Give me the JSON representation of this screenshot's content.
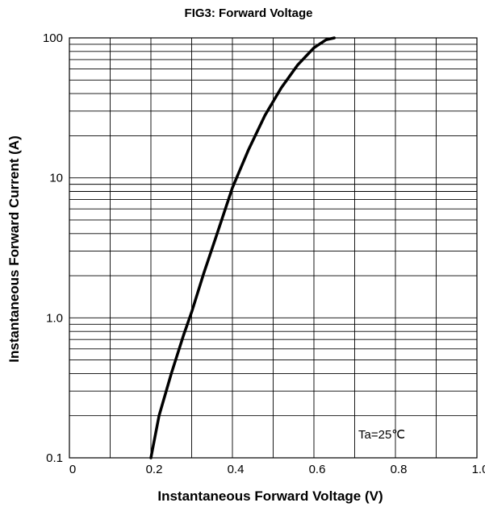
{
  "chart_data": {
    "type": "line",
    "title": "FIG3: Forward Voltage",
    "xlabel": "Instantaneous Forward Voltage (V)",
    "ylabel": "Instantaneous Forward Current (A)",
    "xlim": [
      0,
      1.0
    ],
    "ylim": [
      0.1,
      100
    ],
    "yscale": "log",
    "grid": true,
    "x_ticks": [
      {
        "value": 0,
        "label": "0"
      },
      {
        "value": 0.2,
        "label": "0.2"
      },
      {
        "value": 0.4,
        "label": "0.4"
      },
      {
        "value": 0.6,
        "label": "0.6"
      },
      {
        "value": 0.8,
        "label": "0.8"
      },
      {
        "value": 1.0,
        "label": "1.0"
      }
    ],
    "y_ticks": [
      {
        "value": 0.1,
        "label": "0.1"
      },
      {
        "value": 1.0,
        "label": "1.0"
      },
      {
        "value": 10,
        "label": "10"
      },
      {
        "value": 100,
        "label": "100"
      }
    ],
    "annotation": "Ta=25℃",
    "series": [
      {
        "x": [
          0.2,
          0.22,
          0.25,
          0.28,
          0.3,
          0.33,
          0.36,
          0.4,
          0.44,
          0.48,
          0.52,
          0.56,
          0.6,
          0.63,
          0.65
        ],
        "y": [
          0.1,
          0.2,
          0.4,
          0.75,
          1.1,
          2.1,
          3.8,
          8.5,
          16,
          28,
          44,
          64,
          85,
          97,
          100
        ]
      }
    ]
  }
}
